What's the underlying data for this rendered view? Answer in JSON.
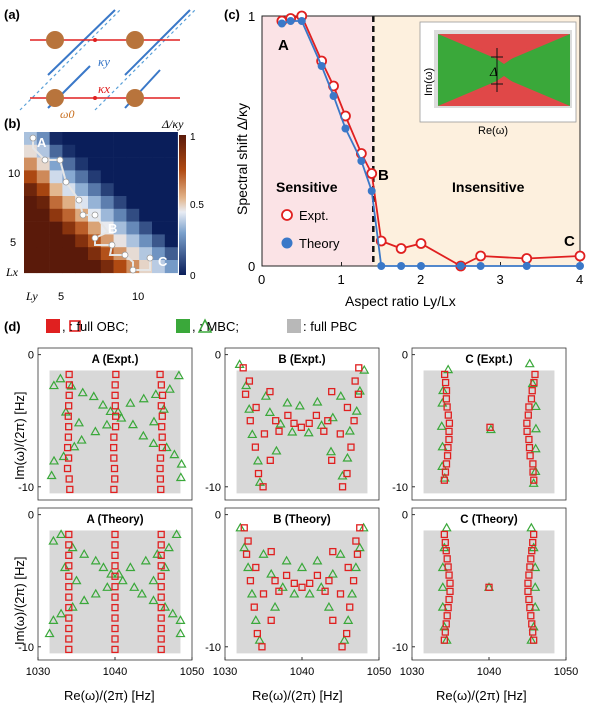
{
  "panel_labels": {
    "a": "(a)",
    "b": "(b)",
    "c": "(c)",
    "d": "(d)"
  },
  "colors": {
    "red": "#e02020",
    "green": "#3aa83a",
    "blue": "#3a78c8",
    "gray": "#d8d8d8",
    "pink_bg": "#fbe3e6",
    "peach_bg": "#fdf0de",
    "brown": "#b8743c"
  },
  "panel_a": {
    "ky": "κy",
    "kx": "κx",
    "w0": "ω0"
  },
  "panel_b": {
    "colorbar_title": "Δ/κy",
    "colorbar_ticks": [
      "1",
      "0.5",
      "0"
    ],
    "ylabel": "Lx",
    "xlabel": "Ly",
    "xticks": [
      "5",
      "10"
    ],
    "yticks": [
      "10",
      "5"
    ],
    "point_labels": [
      "A",
      "B",
      "C"
    ]
  },
  "chart_data": [
    {
      "type": "line",
      "title": "",
      "xlabel": "Aspect ratio Ly/Lx",
      "ylabel": "Spectral shift Δ/κy",
      "xlim": [
        0,
        4
      ],
      "ylim": [
        0,
        1
      ],
      "xticks": [
        "0",
        "1",
        "2",
        "3",
        "4"
      ],
      "yticks": [
        "0",
        "1"
      ],
      "regions": [
        {
          "label": "Sensitive",
          "x": [
            0,
            1.4
          ]
        },
        {
          "label": "Insensitive",
          "x": [
            1.4,
            4
          ]
        }
      ],
      "threshold_x": 1.4,
      "point_labels": [
        {
          "text": "A",
          "x": 0.25,
          "y": 0.92
        },
        {
          "text": "B",
          "x": 1.4,
          "y": 0.37
        },
        {
          "text": "C",
          "x": 4,
          "y": 0.11
        }
      ],
      "series": [
        {
          "name": "Expt.",
          "x": [
            0.25,
            0.36,
            0.5,
            0.75,
            0.9,
            1.05,
            1.25,
            1.38,
            1.5,
            1.75,
            2.0,
            2.5,
            2.75,
            3.33,
            4.0
          ],
          "y": [
            0.98,
            0.99,
            1.0,
            0.82,
            0.72,
            0.6,
            0.45,
            0.37,
            0.1,
            0.07,
            0.09,
            0.0,
            0.04,
            0.03,
            0.04
          ]
        },
        {
          "name": "Theory",
          "x": [
            0.25,
            0.36,
            0.5,
            0.75,
            0.9,
            1.05,
            1.25,
            1.38,
            1.5,
            1.75,
            2.0,
            2.5,
            2.75,
            3.33,
            4.0
          ],
          "y": [
            0.97,
            0.98,
            0.98,
            0.8,
            0.68,
            0.55,
            0.42,
            0.3,
            0.0,
            0.0,
            0.0,
            0.0,
            0.0,
            0.0,
            0.0
          ]
        }
      ],
      "inset": {
        "ylabel": "Im(ω)",
        "xlabel": "Re(ω)",
        "delta": "Δ"
      }
    },
    {
      "type": "scatter",
      "legend": {
        "obc": ", : full OBC;",
        "mbc": ", : MBC;",
        "pbc": ": full PBC"
      },
      "xlabel": "Re(ω)/(2π) [Hz]",
      "ylabel": "Im(ω)/(2π) [Hz]",
      "xlim": [
        1030,
        1050
      ],
      "ylim": [
        -11,
        0.5
      ],
      "xticks": [
        "1030",
        "1040",
        "1050"
      ],
      "yticks": [
        "0",
        "-10"
      ],
      "subplots": [
        {
          "title": "A (Expt.)",
          "case": "A"
        },
        {
          "title": "B (Expt.)",
          "case": "B"
        },
        {
          "title": "C (Expt.)",
          "case": "C"
        },
        {
          "title": "A (Theory)",
          "case": "A"
        },
        {
          "title": "B (Theory)",
          "case": "B"
        },
        {
          "title": "C (Theory)",
          "case": "C"
        }
      ],
      "obc_points": {
        "A": {
          "x": [
            1034,
            1040,
            1046
          ],
          "y_from": -1.5,
          "y_to": -10.2,
          "n": 12
        },
        "B_points": [
          [
            1032.5,
            -1
          ],
          [
            1032.8,
            -3
          ],
          [
            1033.3,
            -5
          ],
          [
            1033.8,
            -7
          ],
          [
            1034.2,
            -9
          ],
          [
            1033,
            -2
          ],
          [
            1034,
            -4
          ],
          [
            1035,
            -6
          ],
          [
            1036.5,
            -5
          ],
          [
            1038,
            -4.6
          ],
          [
            1039,
            -5.2
          ],
          [
            1041,
            -5.2
          ],
          [
            1042,
            -4.6
          ],
          [
            1043.5,
            -5
          ],
          [
            1045,
            -6
          ],
          [
            1046,
            -4
          ],
          [
            1047,
            -2
          ],
          [
            1047.5,
            -1
          ],
          [
            1047.2,
            -3
          ],
          [
            1046.7,
            -5
          ],
          [
            1046.2,
            -7
          ],
          [
            1045.8,
            -9
          ],
          [
            1034.8,
            -10
          ],
          [
            1045.2,
            -10
          ],
          [
            1037,
            -5.8
          ],
          [
            1043,
            -5.8
          ],
          [
            1036,
            -8
          ],
          [
            1044,
            -8
          ],
          [
            1036,
            -2.8
          ],
          [
            1044,
            -2.8
          ],
          [
            1040,
            -5.5
          ]
        ],
        "C": {
          "x": [
            1035,
            1045
          ],
          "y_from": -1.5,
          "y_to": -9.5,
          "n": 14
        }
      },
      "mbc_points": {
        "A": [
          [
            1032,
            -2
          ],
          [
            1033,
            -1.5
          ],
          [
            1034.5,
            -2.5
          ],
          [
            1036,
            -3
          ],
          [
            1037.5,
            -3.5
          ],
          [
            1038.5,
            -4
          ],
          [
            1039.5,
            -4.5
          ],
          [
            1041,
            -5
          ],
          [
            1042.5,
            -5.5
          ],
          [
            1043.5,
            -6
          ],
          [
            1045,
            -6.5
          ],
          [
            1046.5,
            -7
          ],
          [
            1047.5,
            -7.5
          ],
          [
            1048.5,
            -8
          ],
          [
            1048,
            -1.5
          ],
          [
            1047,
            -2.5
          ],
          [
            1045.5,
            -3
          ],
          [
            1044,
            -3.5
          ],
          [
            1042,
            -4
          ],
          [
            1040.5,
            -4.5
          ],
          [
            1039,
            -5.5
          ],
          [
            1037.5,
            -6
          ],
          [
            1036,
            -6.5
          ],
          [
            1034.5,
            -7
          ],
          [
            1033,
            -7.5
          ],
          [
            1032,
            -8
          ],
          [
            1031.5,
            -9
          ],
          [
            1048.5,
            -9
          ],
          [
            1035,
            -5
          ],
          [
            1045,
            -5
          ],
          [
            1033.5,
            -4
          ],
          [
            1046.5,
            -4
          ]
        ],
        "B": [
          [
            1032,
            -1
          ],
          [
            1032.5,
            -2.5
          ],
          [
            1033,
            -4
          ],
          [
            1033.5,
            -6
          ],
          [
            1034,
            -8
          ],
          [
            1034.5,
            -9.5
          ],
          [
            1048,
            -1
          ],
          [
            1047.5,
            -2.5
          ],
          [
            1047,
            -4
          ],
          [
            1046.5,
            -6
          ],
          [
            1046,
            -8
          ],
          [
            1045.5,
            -9.5
          ],
          [
            1036,
            -4.5
          ],
          [
            1037.5,
            -5.5
          ],
          [
            1039,
            -6
          ],
          [
            1041,
            -6
          ],
          [
            1042.5,
            -5.5
          ],
          [
            1044,
            -4.5
          ],
          [
            1036.5,
            -7
          ],
          [
            1043.5,
            -7
          ],
          [
            1038,
            -3.5
          ],
          [
            1042,
            -3.5
          ],
          [
            1035,
            -3
          ],
          [
            1045,
            -3
          ],
          [
            1040,
            -4
          ]
        ],
        "C": [
          [
            1034.5,
            -1
          ],
          [
            1034.2,
            -2.5
          ],
          [
            1034,
            -4
          ],
          [
            1034,
            -5.5
          ],
          [
            1034,
            -7
          ],
          [
            1034.2,
            -8.5
          ],
          [
            1034.5,
            -9.5
          ],
          [
            1045.5,
            -1
          ],
          [
            1045.8,
            -2.5
          ],
          [
            1046,
            -4
          ],
          [
            1046,
            -5.5
          ],
          [
            1046,
            -7
          ],
          [
            1045.8,
            -8.5
          ],
          [
            1045.5,
            -9.5
          ],
          [
            1040,
            -5.5
          ]
        ]
      }
    }
  ]
}
